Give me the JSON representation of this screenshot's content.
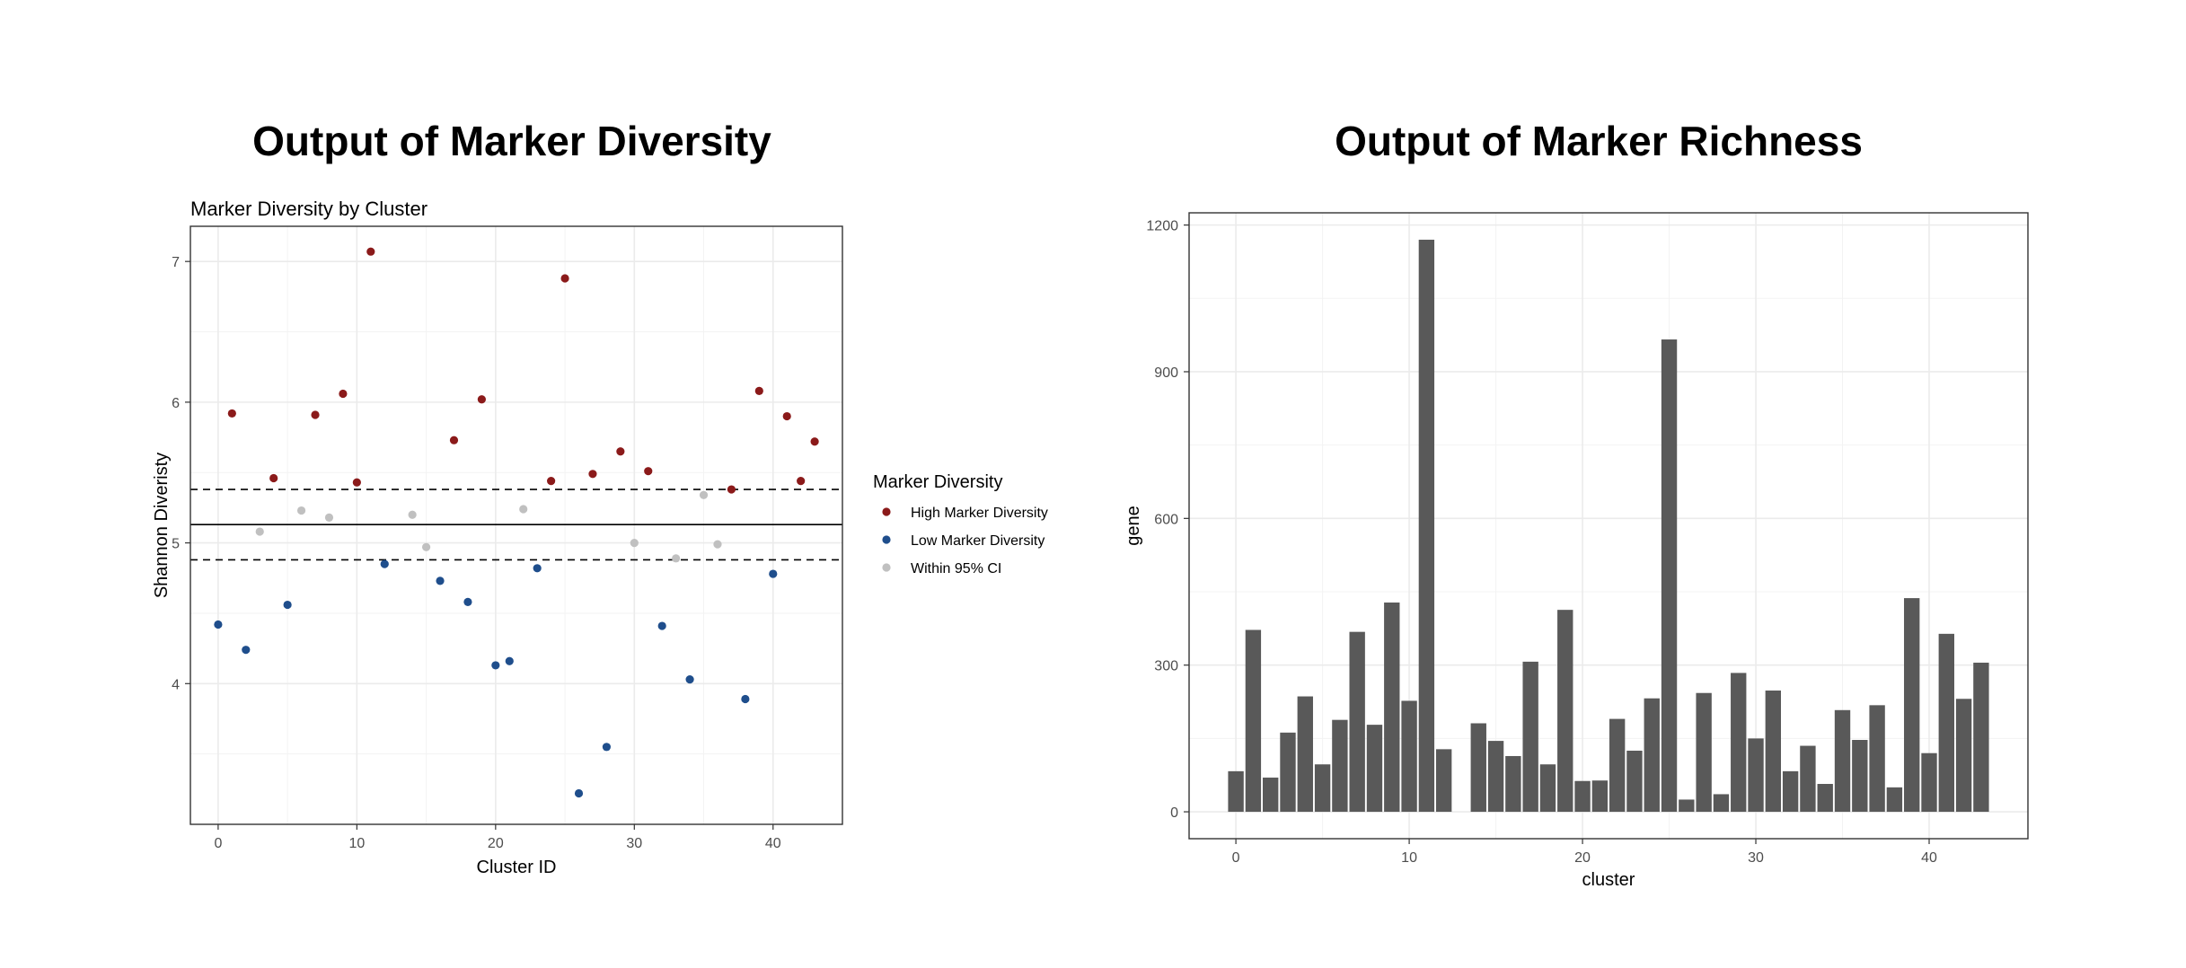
{
  "page": {
    "left_title": "Output of Marker Diversity",
    "right_title": "Output of Marker Richness"
  },
  "colors": {
    "high": "#8b1a1a",
    "low": "#1f4e8c",
    "within": "#c0c0c0",
    "bar": "#595959",
    "grid": "#ebebeb",
    "panel_border": "#333333"
  },
  "chart_data": [
    {
      "type": "scatter",
      "title": "Marker Diversity by Cluster",
      "xlabel": "Cluster ID",
      "ylabel": "Shannon Diveristy",
      "xlim": [
        -2,
        45
      ],
      "ylim": [
        3.0,
        7.25
      ],
      "xticks": [
        0,
        10,
        20,
        30,
        40
      ],
      "yticks": [
        4,
        5,
        6,
        7
      ],
      "grid": true,
      "reference_lines": {
        "mean": 5.13,
        "ci_lower": 4.88,
        "ci_upper": 5.38
      },
      "legend": {
        "title": "Marker Diversity",
        "position": "right",
        "entries": [
          {
            "key": "high",
            "label": "High Marker Diversity"
          },
          {
            "key": "low",
            "label": "Low Marker Diversity"
          },
          {
            "key": "within",
            "label": "Within 95% CI"
          }
        ]
      },
      "points": [
        {
          "x": 0,
          "y": 4.42,
          "group": "low"
        },
        {
          "x": 1,
          "y": 5.92,
          "group": "high"
        },
        {
          "x": 2,
          "y": 4.24,
          "group": "low"
        },
        {
          "x": 3,
          "y": 5.08,
          "group": "within"
        },
        {
          "x": 4,
          "y": 5.46,
          "group": "high"
        },
        {
          "x": 5,
          "y": 4.56,
          "group": "low"
        },
        {
          "x": 6,
          "y": 5.23,
          "group": "within"
        },
        {
          "x": 7,
          "y": 5.91,
          "group": "high"
        },
        {
          "x": 8,
          "y": 5.18,
          "group": "within"
        },
        {
          "x": 9,
          "y": 6.06,
          "group": "high"
        },
        {
          "x": 10,
          "y": 5.43,
          "group": "high"
        },
        {
          "x": 11,
          "y": 7.07,
          "group": "high"
        },
        {
          "x": 12,
          "y": 4.85,
          "group": "low"
        },
        {
          "x": 14,
          "y": 5.2,
          "group": "within"
        },
        {
          "x": 15,
          "y": 4.97,
          "group": "within"
        },
        {
          "x": 16,
          "y": 4.73,
          "group": "low"
        },
        {
          "x": 17,
          "y": 5.73,
          "group": "high"
        },
        {
          "x": 18,
          "y": 4.58,
          "group": "low"
        },
        {
          "x": 19,
          "y": 6.02,
          "group": "high"
        },
        {
          "x": 20,
          "y": 4.13,
          "group": "low"
        },
        {
          "x": 21,
          "y": 4.16,
          "group": "low"
        },
        {
          "x": 22,
          "y": 5.24,
          "group": "within"
        },
        {
          "x": 23,
          "y": 4.82,
          "group": "low"
        },
        {
          "x": 24,
          "y": 5.44,
          "group": "high"
        },
        {
          "x": 25,
          "y": 6.88,
          "group": "high"
        },
        {
          "x": 26,
          "y": 3.22,
          "group": "low"
        },
        {
          "x": 27,
          "y": 5.49,
          "group": "high"
        },
        {
          "x": 28,
          "y": 3.55,
          "group": "low"
        },
        {
          "x": 29,
          "y": 5.65,
          "group": "high"
        },
        {
          "x": 30,
          "y": 5.0,
          "group": "within"
        },
        {
          "x": 31,
          "y": 5.51,
          "group": "high"
        },
        {
          "x": 32,
          "y": 4.41,
          "group": "low"
        },
        {
          "x": 33,
          "y": 4.89,
          "group": "within"
        },
        {
          "x": 34,
          "y": 4.03,
          "group": "low"
        },
        {
          "x": 35,
          "y": 5.34,
          "group": "within"
        },
        {
          "x": 36,
          "y": 4.99,
          "group": "within"
        },
        {
          "x": 37,
          "y": 5.38,
          "group": "high"
        },
        {
          "x": 38,
          "y": 3.89,
          "group": "low"
        },
        {
          "x": 39,
          "y": 6.08,
          "group": "high"
        },
        {
          "x": 40,
          "y": 4.78,
          "group": "low"
        },
        {
          "x": 41,
          "y": 5.9,
          "group": "high"
        },
        {
          "x": 42,
          "y": 5.44,
          "group": "high"
        },
        {
          "x": 43,
          "y": 5.72,
          "group": "high"
        }
      ]
    },
    {
      "type": "bar",
      "title": "",
      "xlabel": "cluster",
      "ylabel": "gene",
      "xlim": [
        -2.7,
        45.7
      ],
      "ylim": [
        -55,
        1225
      ],
      "xticks": [
        0,
        10,
        20,
        30,
        40
      ],
      "yticks": [
        0,
        300,
        600,
        900,
        1200
      ],
      "grid": true,
      "categories": [
        0,
        1,
        2,
        3,
        4,
        5,
        6,
        7,
        8,
        9,
        10,
        11,
        12,
        13,
        14,
        15,
        16,
        17,
        18,
        19,
        20,
        21,
        22,
        23,
        24,
        25,
        26,
        27,
        28,
        29,
        30,
        31,
        32,
        33,
        34,
        35,
        36,
        37,
        38,
        39,
        40,
        41,
        42,
        43
      ],
      "values": [
        83,
        372,
        70,
        162,
        236,
        97,
        188,
        368,
        178,
        428,
        227,
        1170,
        128,
        0,
        181,
        145,
        114,
        307,
        97,
        413,
        63,
        64,
        190,
        125,
        232,
        966,
        25,
        243,
        36,
        284,
        150,
        248,
        83,
        135,
        57,
        208,
        147,
        218,
        50,
        437,
        120,
        364,
        231,
        305
      ]
    }
  ]
}
